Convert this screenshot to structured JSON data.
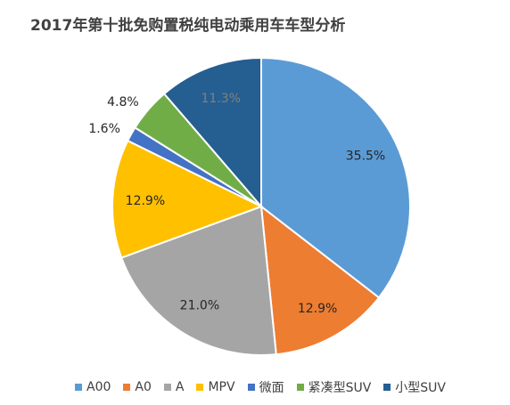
{
  "chart_data": {
    "type": "pie",
    "title": "2017年第十批免购置税纯电动乘用车车型分析",
    "categories": [
      "A00",
      "A0",
      "A",
      "MPV",
      "微面",
      "紧凑型SUV",
      "小型SUV"
    ],
    "values": [
      35.5,
      12.9,
      21.0,
      12.9,
      1.6,
      4.8,
      11.3
    ],
    "labels": [
      "35.5%",
      "12.9%",
      "21.0%",
      "12.9%",
      "1.6%",
      "4.8%",
      "11.3%"
    ],
    "colors": [
      "#5B9BD5",
      "#ED7D31",
      "#A5A5A5",
      "#FFC000",
      "#4472C4",
      "#70AD47",
      "#255E91"
    ],
    "label_colors": [
      "#262626",
      "#262626",
      "#262626",
      "#262626",
      "#262626",
      "#262626",
      "#808080"
    ],
    "legend_position": "bottom"
  }
}
